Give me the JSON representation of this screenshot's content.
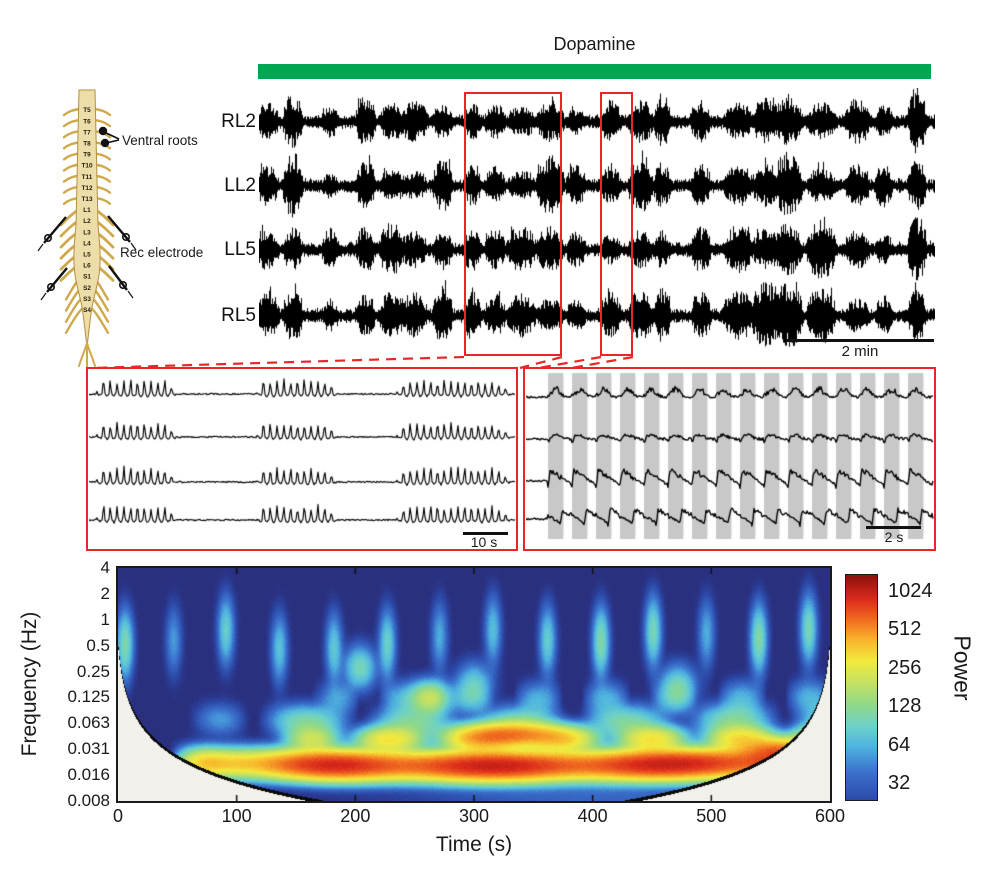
{
  "figure": {
    "dopamine_label": "Dopamine",
    "green": "#00a651",
    "red": "#e8262a"
  },
  "main_traces": {
    "labels": [
      "RL2",
      "LL2",
      "LL5",
      "RL5"
    ],
    "scalebar": "2 min"
  },
  "insets": {
    "left": {
      "scalebar": "10 s",
      "episodes": [
        [
          7,
          88
        ],
        [
          167,
          248
        ],
        [
          307,
          420
        ]
      ]
    },
    "right": {
      "scalebar": "2 s",
      "band": {
        "start": 22,
        "period": 24,
        "width": 15.5,
        "count": 16,
        "color": "#c8c8c8"
      }
    }
  },
  "diagram": {
    "ventral_roots_label": "Ventral roots",
    "rec_electrode_label": "Rec electrode",
    "segments": [
      "T5",
      "T6",
      "T7",
      "T8",
      "T9",
      "T10",
      "T11",
      "T12",
      "T13",
      "L1",
      "L2",
      "L3",
      "L4",
      "L5",
      "L6",
      "S1",
      "S2",
      "S3",
      "S4"
    ],
    "cord_fill": "#ecdda9",
    "cord_stroke": "#b3903c",
    "branch_color": "#cfa94b"
  },
  "chart_data": {
    "type": "heatmap",
    "title": "",
    "xlabel": "Time (s)",
    "ylabel": "Frequency (Hz)",
    "x_ticks": [
      "0",
      "100",
      "200",
      "300",
      "400",
      "500",
      "600"
    ],
    "y_ticks": [
      "4",
      "2",
      "1",
      "0.5",
      "0.25",
      "0.125",
      "0.063",
      "0.031",
      "0.016",
      "0.008"
    ],
    "xlim": [
      0,
      600
    ],
    "flim": [
      0.008,
      4
    ],
    "grid": false,
    "colorbar": {
      "label": "Power",
      "ticks": [
        "1024",
        "512",
        "256",
        "128",
        "64",
        "32"
      ],
      "position": "right"
    },
    "colormap": [
      [
        0.0,
        "#2a2f7e"
      ],
      [
        0.08,
        "#2c49a8"
      ],
      [
        0.2,
        "#3c74ce"
      ],
      [
        0.3,
        "#4fb4e0"
      ],
      [
        0.38,
        "#6cd1c9"
      ],
      [
        0.47,
        "#90d988"
      ],
      [
        0.56,
        "#c6e163"
      ],
      [
        0.65,
        "#f3ea3d"
      ],
      [
        0.74,
        "#f8b02b"
      ],
      [
        0.82,
        "#f06a20"
      ],
      [
        0.9,
        "#dc2a1c"
      ],
      [
        1.0,
        "#8c100c"
      ]
    ],
    "power_map": {
      "log2_min": 4.2,
      "log2_span": 7.1,
      "background_power": 18
    },
    "cone": {
      "a": 1.3,
      "eps": 2.5,
      "edge": 0.13,
      "outside_color": "#f2f0eb"
    },
    "bands": [
      {
        "f": 0.023,
        "drift_oct": 0.18,
        "sigma_oct": 0.33,
        "power": 1750,
        "t0": 42,
        "t1": 585,
        "rise": 40,
        "fall": 18,
        "mod_f": 0.043,
        "mod_ph": 0.5,
        "mod_depth": 0.2,
        "late_boost": true
      },
      {
        "f": 0.044,
        "drift_oct": 0.1,
        "sigma_oct": 0.3,
        "power": 430,
        "t0": 125,
        "t1": 600,
        "rise": 60,
        "fall": 1,
        "mod_f": 0.085,
        "mod_ph": 1.0,
        "mod_depth": 0.45,
        "late_boost": false
      },
      {
        "f": 0.075,
        "drift_oct": 0.22,
        "sigma_oct": 0.38,
        "power": 130,
        "t0": 55,
        "t1": 600,
        "rise": 60,
        "fall": 1,
        "mod_f": 0.07,
        "mod_ph": 3.0,
        "mod_depth": 0.5,
        "late_boost": false
      },
      {
        "f": 0.13,
        "drift_oct": 0.1,
        "sigma_oct": 0.4,
        "power": 60,
        "t0": 140,
        "t1": 600,
        "rise": 60,
        "fall": 1,
        "mod_f": 0.11,
        "mod_ph": 0.3,
        "mod_depth": 0.6,
        "late_boost": false
      }
    ],
    "blobs": [
      {
        "t": 332,
        "f": 0.046,
        "power": 900,
        "st": 26,
        "soct": 0.28
      },
      {
        "t": 556,
        "f": 0.031,
        "power": 750,
        "st": 20,
        "soct": 0.3
      },
      {
        "t": 263,
        "f": 0.125,
        "power": 280,
        "st": 10,
        "soct": 0.38
      },
      {
        "t": 204,
        "f": 0.28,
        "power": 120,
        "st": 8,
        "soct": 0.5
      },
      {
        "t": 472,
        "f": 0.17,
        "power": 110,
        "st": 9,
        "soct": 0.5
      },
      {
        "t": 300,
        "f": 0.18,
        "power": 90,
        "st": 9,
        "soct": 0.5
      },
      {
        "t": 398,
        "f": 0.009,
        "power": 22,
        "st": 95,
        "soct": 0.75
      }
    ],
    "episodes": {
      "times": [
        6,
        47,
        91,
        136,
        182,
        227,
        271,
        316,
        362,
        407,
        451,
        496,
        540,
        582
      ],
      "f_peak": 0.62,
      "sigma_oct": 0.8,
      "sigma_t": 4.2,
      "power": 95
    }
  }
}
